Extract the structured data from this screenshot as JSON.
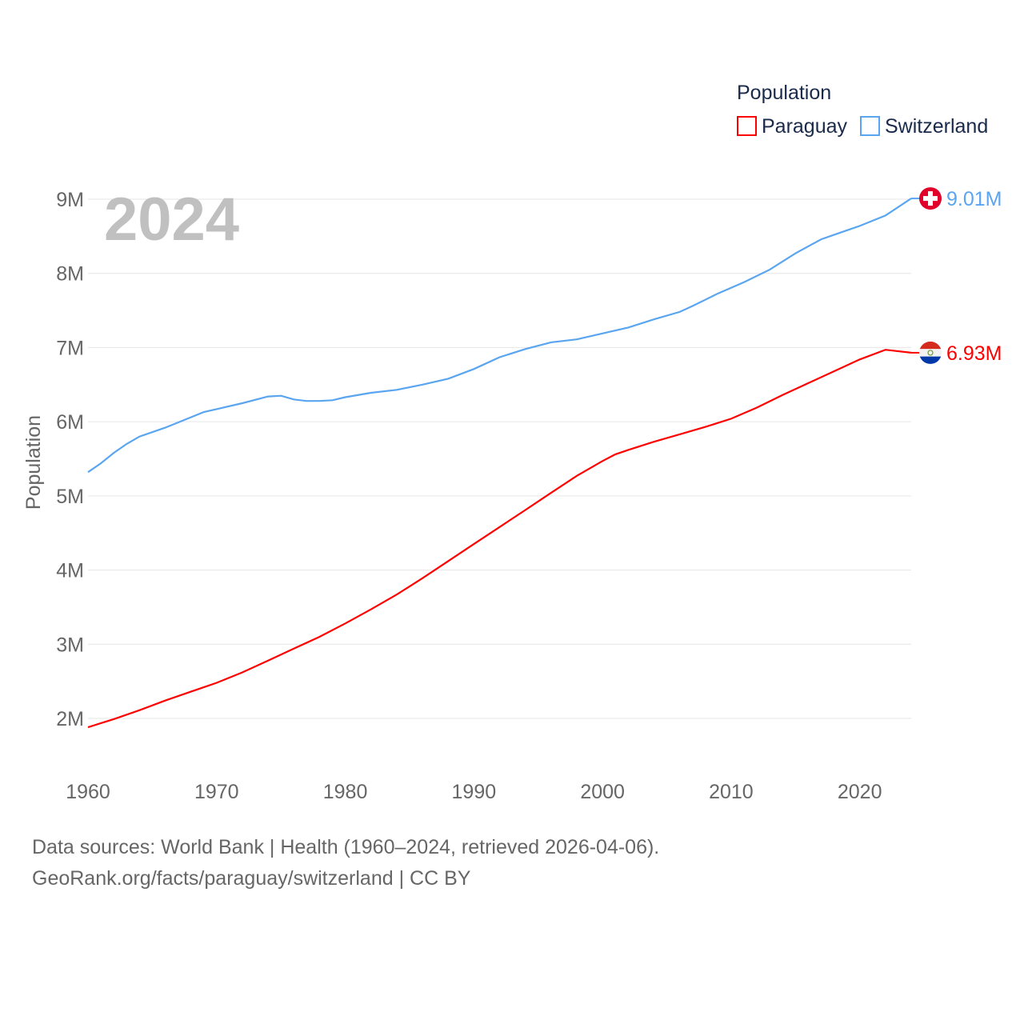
{
  "chart_data": {
    "type": "line",
    "title": "Population",
    "big_year": "2024",
    "ylabel": "Population",
    "xlabel": "",
    "xlim": [
      1960,
      2024
    ],
    "ylim": [
      2000000,
      9000000
    ],
    "x_ticks": [
      "1960",
      "1970",
      "1980",
      "1990",
      "2000",
      "2010",
      "2020"
    ],
    "y_ticks": [
      "2M",
      "3M",
      "4M",
      "5M",
      "6M",
      "7M",
      "8M",
      "9M"
    ],
    "grid": true,
    "legend_position": "top-right",
    "series": [
      {
        "name": "Paraguay",
        "color": "#ff0000",
        "end_label": "6.93M",
        "flag": "paraguay-flag",
        "points": [
          [
            1960,
            1.88
          ],
          [
            1962,
            1.99
          ],
          [
            1964,
            2.11
          ],
          [
            1966,
            2.24
          ],
          [
            1968,
            2.36
          ],
          [
            1970,
            2.48
          ],
          [
            1972,
            2.62
          ],
          [
            1974,
            2.78
          ],
          [
            1976,
            2.94
          ],
          [
            1978,
            3.1
          ],
          [
            1980,
            3.28
          ],
          [
            1982,
            3.47
          ],
          [
            1984,
            3.67
          ],
          [
            1986,
            3.89
          ],
          [
            1988,
            4.12
          ],
          [
            1990,
            4.35
          ],
          [
            1992,
            4.58
          ],
          [
            1994,
            4.81
          ],
          [
            1996,
            5.04
          ],
          [
            1998,
            5.27
          ],
          [
            2000,
            5.47
          ],
          [
            2001,
            5.56
          ],
          [
            2002,
            5.62
          ],
          [
            2004,
            5.73
          ],
          [
            2006,
            5.83
          ],
          [
            2008,
            5.93
          ],
          [
            2010,
            6.04
          ],
          [
            2012,
            6.19
          ],
          [
            2014,
            6.36
          ],
          [
            2016,
            6.52
          ],
          [
            2018,
            6.68
          ],
          [
            2020,
            6.84
          ],
          [
            2022,
            6.97
          ],
          [
            2024,
            6.93
          ]
        ]
      },
      {
        "name": "Switzerland",
        "color": "#5aa5f0",
        "end_label": "9.01M",
        "flag": "switzerland-flag",
        "points": [
          [
            1960,
            5.32
          ],
          [
            1961,
            5.44
          ],
          [
            1962,
            5.58
          ],
          [
            1963,
            5.7
          ],
          [
            1964,
            5.8
          ],
          [
            1966,
            5.92
          ],
          [
            1968,
            6.06
          ],
          [
            1969,
            6.13
          ],
          [
            1970,
            6.17
          ],
          [
            1972,
            6.25
          ],
          [
            1974,
            6.34
          ],
          [
            1975,
            6.35
          ],
          [
            1976,
            6.3
          ],
          [
            1977,
            6.28
          ],
          [
            1978,
            6.28
          ],
          [
            1979,
            6.29
          ],
          [
            1980,
            6.33
          ],
          [
            1982,
            6.39
          ],
          [
            1984,
            6.43
          ],
          [
            1986,
            6.5
          ],
          [
            1988,
            6.58
          ],
          [
            1990,
            6.71
          ],
          [
            1992,
            6.87
          ],
          [
            1994,
            6.98
          ],
          [
            1996,
            7.07
          ],
          [
            1998,
            7.11
          ],
          [
            2000,
            7.19
          ],
          [
            2002,
            7.27
          ],
          [
            2004,
            7.38
          ],
          [
            2006,
            7.48
          ],
          [
            2007,
            7.56
          ],
          [
            2009,
            7.73
          ],
          [
            2011,
            7.88
          ],
          [
            2013,
            8.05
          ],
          [
            2015,
            8.27
          ],
          [
            2017,
            8.46
          ],
          [
            2019,
            8.58
          ],
          [
            2020,
            8.64
          ],
          [
            2022,
            8.78
          ],
          [
            2024,
            9.01
          ]
        ]
      }
    ]
  },
  "footer": {
    "line1": "Data sources: World Bank | Health (1960–2024, retrieved 2026-04-06).",
    "line2": "GeoRank.org/facts/paraguay/switzerland | CC BY"
  }
}
